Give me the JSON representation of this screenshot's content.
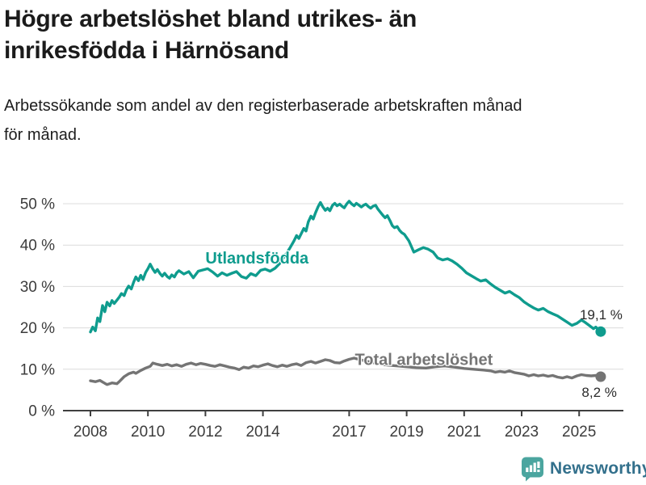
{
  "header": {
    "title_lines": [
      "Högre arbetslöshet bland utrikes- än",
      "inrikesfödda i Härnösand"
    ],
    "subtitle_lines": [
      "Arbetssökande som andel av den registerbaserade arbetskraften månad",
      "för månad."
    ]
  },
  "chart_data": {
    "type": "line",
    "title": "Högre arbetslöshet bland utrikes- än inrikesfödda i Härnösand",
    "subtitle": "Arbetssökande som andel av den registerbaserade arbetskraften månad för månad.",
    "unit": "%",
    "grid": true,
    "legend_position": "inline-labels",
    "xlim": [
      2007.1,
      2026.6
    ],
    "ylim": [
      0,
      52
    ],
    "yticks": [
      {
        "value": 0,
        "label": "0 %"
      },
      {
        "value": 10,
        "label": "10 %"
      },
      {
        "value": 20,
        "label": "20 %"
      },
      {
        "value": 30,
        "label": "30 %"
      },
      {
        "value": 40,
        "label": "40 %"
      },
      {
        "value": 50,
        "label": "50 %"
      }
    ],
    "xticks": [
      {
        "value": 2008,
        "label": "2008"
      },
      {
        "value": 2010,
        "label": "2010"
      },
      {
        "value": 2012,
        "label": "2012"
      },
      {
        "value": 2014,
        "label": "2014"
      },
      {
        "value": 2017,
        "label": "2017"
      },
      {
        "value": 2019,
        "label": "2019"
      },
      {
        "value": 2021,
        "label": "2021"
      },
      {
        "value": 2023,
        "label": "2023"
      },
      {
        "value": 2025,
        "label": "2025"
      }
    ],
    "colors": {
      "grid": "#dcdcdc",
      "axis": "#3f3f3f",
      "axis_text": "#3c3c3c",
      "end_label_text": "#2b2b2b"
    },
    "series": [
      {
        "name": "Utlandsfödda",
        "slug": "utlandsfodda",
        "color": "#0f9c8e",
        "end_label": "19,1 %",
        "end_label_side": "above",
        "label_pos": {
          "year": 2012.0,
          "value": 35.5
        },
        "points": [
          [
            2008.0,
            19.0
          ],
          [
            2008.08,
            20.2
          ],
          [
            2008.17,
            19.3
          ],
          [
            2008.25,
            22.4
          ],
          [
            2008.33,
            21.5
          ],
          [
            2008.42,
            25.4
          ],
          [
            2008.5,
            23.9
          ],
          [
            2008.58,
            26.2
          ],
          [
            2008.67,
            25.3
          ],
          [
            2008.75,
            26.6
          ],
          [
            2008.83,
            25.9
          ],
          [
            2008.92,
            26.7
          ],
          [
            2009.0,
            27.4
          ],
          [
            2009.08,
            28.3
          ],
          [
            2009.17,
            27.8
          ],
          [
            2009.25,
            29.2
          ],
          [
            2009.33,
            30.1
          ],
          [
            2009.42,
            29.4
          ],
          [
            2009.5,
            31.0
          ],
          [
            2009.58,
            32.3
          ],
          [
            2009.67,
            31.4
          ],
          [
            2009.75,
            32.7
          ],
          [
            2009.83,
            31.7
          ],
          [
            2009.92,
            33.4
          ],
          [
            2010.0,
            34.3
          ],
          [
            2010.08,
            35.4
          ],
          [
            2010.17,
            34.2
          ],
          [
            2010.25,
            33.4
          ],
          [
            2010.33,
            34.1
          ],
          [
            2010.42,
            33.1
          ],
          [
            2010.5,
            32.5
          ],
          [
            2010.58,
            33.2
          ],
          [
            2010.67,
            32.4
          ],
          [
            2010.75,
            32.0
          ],
          [
            2010.83,
            32.8
          ],
          [
            2010.92,
            32.3
          ],
          [
            2011.0,
            33.3
          ],
          [
            2011.08,
            33.8
          ],
          [
            2011.25,
            33.0
          ],
          [
            2011.42,
            33.6
          ],
          [
            2011.58,
            32.1
          ],
          [
            2011.75,
            33.7
          ],
          [
            2011.92,
            34.0
          ],
          [
            2012.08,
            34.3
          ],
          [
            2012.25,
            33.5
          ],
          [
            2012.42,
            32.5
          ],
          [
            2012.58,
            33.3
          ],
          [
            2012.75,
            32.7
          ],
          [
            2012.92,
            33.2
          ],
          [
            2013.08,
            33.6
          ],
          [
            2013.25,
            32.4
          ],
          [
            2013.42,
            32.0
          ],
          [
            2013.58,
            33.1
          ],
          [
            2013.75,
            32.6
          ],
          [
            2013.92,
            33.9
          ],
          [
            2014.08,
            34.2
          ],
          [
            2014.25,
            33.7
          ],
          [
            2014.42,
            34.4
          ],
          [
            2014.58,
            35.5
          ],
          [
            2014.75,
            37.3
          ],
          [
            2014.92,
            39.1
          ],
          [
            2015.08,
            41.0
          ],
          [
            2015.17,
            42.3
          ],
          [
            2015.25,
            41.6
          ],
          [
            2015.42,
            44.0
          ],
          [
            2015.5,
            43.4
          ],
          [
            2015.58,
            45.6
          ],
          [
            2015.67,
            47.0
          ],
          [
            2015.75,
            46.3
          ],
          [
            2015.83,
            47.8
          ],
          [
            2015.92,
            49.3
          ],
          [
            2016.0,
            50.3
          ],
          [
            2016.08,
            49.3
          ],
          [
            2016.17,
            48.4
          ],
          [
            2016.25,
            48.9
          ],
          [
            2016.33,
            48.3
          ],
          [
            2016.42,
            49.6
          ],
          [
            2016.5,
            50.1
          ],
          [
            2016.58,
            49.5
          ],
          [
            2016.67,
            49.9
          ],
          [
            2016.75,
            49.4
          ],
          [
            2016.83,
            49.0
          ],
          [
            2016.92,
            50.0
          ],
          [
            2017.0,
            50.6
          ],
          [
            2017.08,
            50.0
          ],
          [
            2017.17,
            49.5
          ],
          [
            2017.25,
            50.1
          ],
          [
            2017.33,
            49.7
          ],
          [
            2017.42,
            49.2
          ],
          [
            2017.5,
            49.6
          ],
          [
            2017.58,
            49.9
          ],
          [
            2017.67,
            49.3
          ],
          [
            2017.75,
            48.9
          ],
          [
            2017.83,
            49.4
          ],
          [
            2017.92,
            49.6
          ],
          [
            2018.0,
            48.7
          ],
          [
            2018.08,
            48.0
          ],
          [
            2018.17,
            47.2
          ],
          [
            2018.25,
            46.6
          ],
          [
            2018.33,
            47.1
          ],
          [
            2018.42,
            45.9
          ],
          [
            2018.5,
            44.7
          ],
          [
            2018.58,
            44.2
          ],
          [
            2018.67,
            44.5
          ],
          [
            2018.75,
            43.6
          ],
          [
            2018.83,
            43.0
          ],
          [
            2018.92,
            42.6
          ],
          [
            2019.08,
            41.0
          ],
          [
            2019.25,
            38.3
          ],
          [
            2019.42,
            38.9
          ],
          [
            2019.58,
            39.4
          ],
          [
            2019.75,
            39.0
          ],
          [
            2019.92,
            38.3
          ],
          [
            2020.08,
            36.9
          ],
          [
            2020.25,
            36.4
          ],
          [
            2020.42,
            36.7
          ],
          [
            2020.58,
            36.2
          ],
          [
            2020.75,
            35.4
          ],
          [
            2020.92,
            34.4
          ],
          [
            2021.08,
            33.3
          ],
          [
            2021.25,
            32.6
          ],
          [
            2021.42,
            31.9
          ],
          [
            2021.58,
            31.3
          ],
          [
            2021.75,
            31.6
          ],
          [
            2021.92,
            30.6
          ],
          [
            2022.08,
            29.8
          ],
          [
            2022.25,
            29.1
          ],
          [
            2022.42,
            28.4
          ],
          [
            2022.58,
            28.8
          ],
          [
            2022.75,
            28.0
          ],
          [
            2022.92,
            27.3
          ],
          [
            2023.08,
            26.3
          ],
          [
            2023.25,
            25.5
          ],
          [
            2023.42,
            24.8
          ],
          [
            2023.58,
            24.3
          ],
          [
            2023.75,
            24.7
          ],
          [
            2023.92,
            23.9
          ],
          [
            2024.08,
            23.4
          ],
          [
            2024.25,
            22.9
          ],
          [
            2024.42,
            22.1
          ],
          [
            2024.58,
            21.4
          ],
          [
            2024.75,
            20.6
          ],
          [
            2024.92,
            21.1
          ],
          [
            2025.08,
            21.9
          ],
          [
            2025.17,
            21.5
          ],
          [
            2025.33,
            20.7
          ],
          [
            2025.5,
            19.8
          ],
          [
            2025.58,
            20.2
          ],
          [
            2025.75,
            19.1
          ]
        ]
      },
      {
        "name": "Total arbetslöshet",
        "slug": "total-arbetsloshet",
        "color": "#747474",
        "end_label": "8,2 %",
        "end_label_side": "below",
        "label_pos": {
          "year": 2017.2,
          "value": 11.0
        },
        "points": [
          [
            2008.0,
            7.2
          ],
          [
            2008.17,
            7.0
          ],
          [
            2008.33,
            7.3
          ],
          [
            2008.5,
            6.6
          ],
          [
            2008.58,
            6.3
          ],
          [
            2008.75,
            6.7
          ],
          [
            2008.92,
            6.5
          ],
          [
            2009.0,
            7.0
          ],
          [
            2009.17,
            8.2
          ],
          [
            2009.33,
            8.9
          ],
          [
            2009.5,
            9.3
          ],
          [
            2009.58,
            9.0
          ],
          [
            2009.75,
            9.7
          ],
          [
            2009.92,
            10.3
          ],
          [
            2010.08,
            10.7
          ],
          [
            2010.17,
            11.5
          ],
          [
            2010.33,
            11.2
          ],
          [
            2010.5,
            10.9
          ],
          [
            2010.67,
            11.2
          ],
          [
            2010.83,
            10.8
          ],
          [
            2011.0,
            11.1
          ],
          [
            2011.17,
            10.7
          ],
          [
            2011.33,
            11.2
          ],
          [
            2011.5,
            11.5
          ],
          [
            2011.67,
            11.1
          ],
          [
            2011.83,
            11.4
          ],
          [
            2012.0,
            11.2
          ],
          [
            2012.17,
            10.9
          ],
          [
            2012.33,
            10.7
          ],
          [
            2012.5,
            11.1
          ],
          [
            2012.67,
            10.8
          ],
          [
            2012.83,
            10.5
          ],
          [
            2013.0,
            10.3
          ],
          [
            2013.17,
            9.9
          ],
          [
            2013.33,
            10.5
          ],
          [
            2013.5,
            10.3
          ],
          [
            2013.67,
            10.8
          ],
          [
            2013.83,
            10.6
          ],
          [
            2014.0,
            11.0
          ],
          [
            2014.17,
            11.3
          ],
          [
            2014.33,
            10.9
          ],
          [
            2014.5,
            10.6
          ],
          [
            2014.67,
            11.0
          ],
          [
            2014.83,
            10.7
          ],
          [
            2015.0,
            11.1
          ],
          [
            2015.17,
            11.3
          ],
          [
            2015.33,
            10.9
          ],
          [
            2015.5,
            11.6
          ],
          [
            2015.67,
            11.9
          ],
          [
            2015.83,
            11.5
          ],
          [
            2016.0,
            11.9
          ],
          [
            2016.17,
            12.3
          ],
          [
            2016.33,
            12.1
          ],
          [
            2016.5,
            11.6
          ],
          [
            2016.67,
            11.5
          ],
          [
            2016.83,
            12.0
          ],
          [
            2017.0,
            12.4
          ],
          [
            2017.17,
            12.7
          ],
          [
            2017.33,
            12.4
          ],
          [
            2017.58,
            12.0
          ],
          [
            2017.83,
            11.6
          ],
          [
            2018.0,
            11.3
          ],
          [
            2018.33,
            11.0
          ],
          [
            2018.67,
            10.8
          ],
          [
            2019.0,
            10.6
          ],
          [
            2019.33,
            10.4
          ],
          [
            2019.67,
            10.3
          ],
          [
            2020.0,
            10.6
          ],
          [
            2020.33,
            10.8
          ],
          [
            2020.67,
            10.5
          ],
          [
            2021.0,
            10.2
          ],
          [
            2021.33,
            10.0
          ],
          [
            2021.67,
            9.8
          ],
          [
            2021.92,
            9.6
          ],
          [
            2022.08,
            9.3
          ],
          [
            2022.25,
            9.5
          ],
          [
            2022.42,
            9.3
          ],
          [
            2022.58,
            9.6
          ],
          [
            2022.75,
            9.2
          ],
          [
            2022.92,
            9.0
          ],
          [
            2023.08,
            8.8
          ],
          [
            2023.25,
            8.4
          ],
          [
            2023.42,
            8.7
          ],
          [
            2023.58,
            8.4
          ],
          [
            2023.75,
            8.6
          ],
          [
            2023.92,
            8.3
          ],
          [
            2024.08,
            8.5
          ],
          [
            2024.25,
            8.1
          ],
          [
            2024.42,
            7.9
          ],
          [
            2024.58,
            8.2
          ],
          [
            2024.75,
            7.9
          ],
          [
            2024.92,
            8.4
          ],
          [
            2025.08,
            8.7
          ],
          [
            2025.25,
            8.5
          ],
          [
            2025.42,
            8.4
          ],
          [
            2025.58,
            8.5
          ],
          [
            2025.75,
            8.2
          ]
        ]
      }
    ]
  },
  "footer": {
    "brand": "Newsworthy",
    "logo_icon": "bar-chart-speech-bubble",
    "logo_color": "#4ba59f",
    "brand_text_color": "#33708c"
  }
}
